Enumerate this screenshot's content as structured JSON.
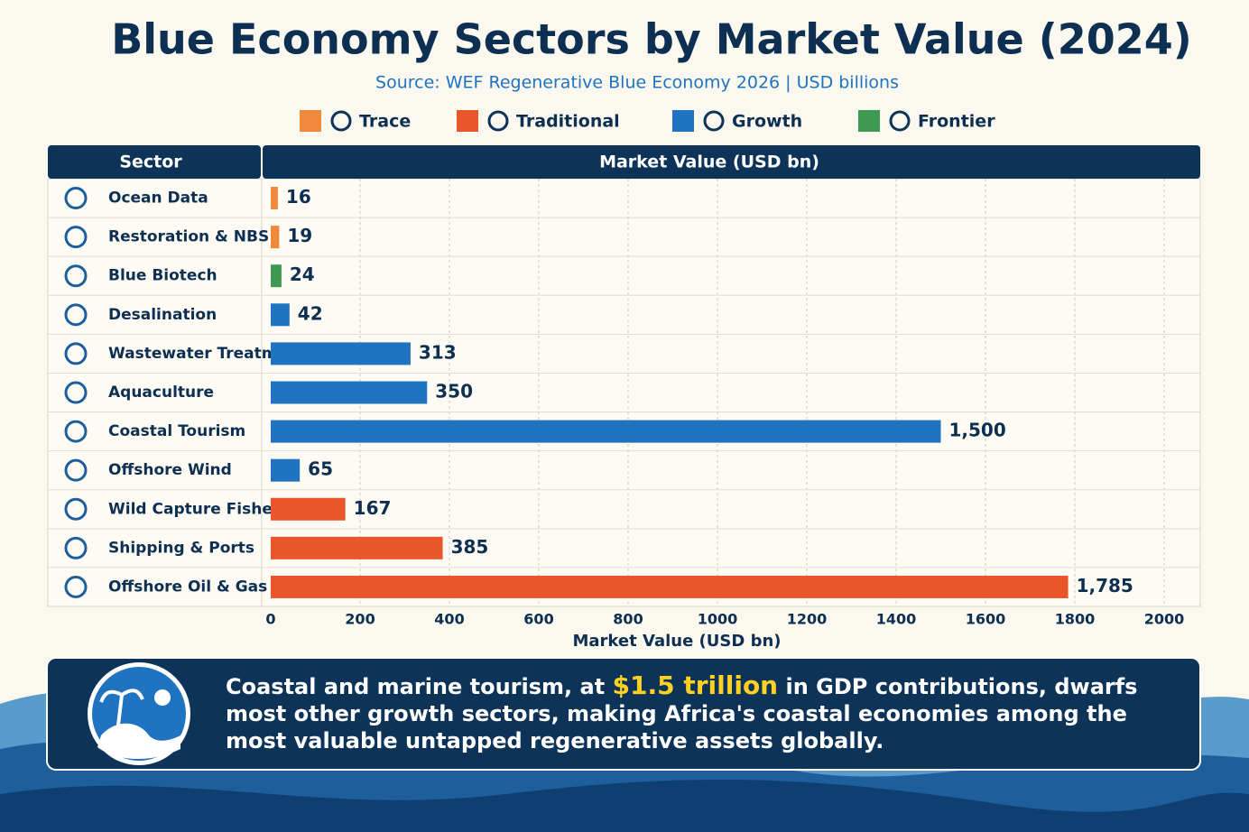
{
  "chart_data": {
    "type": "hbar",
    "title": "Blue Economy Sectors by Market Value (2024)",
    "subtitle": "Source: WEF Regenerative Blue Economy 2026 | USD billions",
    "category_header": "Sector",
    "value_header": "Market Value (USD bn)",
    "xlabel": "Market Value (USD bn)",
    "categories": [
      "Ocean Data",
      "Restoration & NBS",
      "Blue Biotech",
      "Desalination",
      "Wastewater Treatment",
      "Aquaculture",
      "Coastal Tourism",
      "Offshore Wind",
      "Wild Capture Fisheries",
      "Shipping & Ports",
      "Offshore Oil & Gas"
    ],
    "series": [
      {
        "name": "Trace",
        "color": "#f08a3a",
        "values": [
          16,
          19,
          null,
          null,
          null,
          null,
          null,
          null,
          null,
          null,
          null
        ]
      },
      {
        "name": "Traditional",
        "color": "#e8562a",
        "values": [
          null,
          null,
          null,
          null,
          null,
          null,
          null,
          null,
          167,
          385,
          1785
        ],
        "value_labels": [
          null,
          null,
          null,
          null,
          null,
          null,
          null,
          null,
          "167",
          "385",
          "1,785"
        ]
      },
      {
        "name": "Growth",
        "color": "#1f73c0",
        "values": [
          null,
          null,
          null,
          42,
          313,
          350,
          1500,
          65,
          null,
          null,
          null
        ],
        "value_labels": [
          null,
          null,
          null,
          "42",
          "313",
          "350",
          "1,500",
          "65",
          null,
          null,
          null
        ]
      },
      {
        "name": "Frontier",
        "color": "#3e9a52",
        "values": [
          null,
          null,
          24,
          null,
          null,
          null,
          null,
          null,
          null,
          null,
          null
        ]
      }
    ],
    "xlim": [
      0,
      2000
    ],
    "xticks": [
      0,
      200,
      400,
      600,
      800,
      1000,
      1200,
      1400,
      1600,
      1800,
      2000
    ],
    "grid": true,
    "callout": {
      "before": "Coastal and marine tourism, at ",
      "highlight": "$1.5 trillion",
      "after": " in GDP contributions, dwarfs most other growth sectors, making Africa's coastal economies among the most valuable untapped regenerative assets globally."
    }
  }
}
